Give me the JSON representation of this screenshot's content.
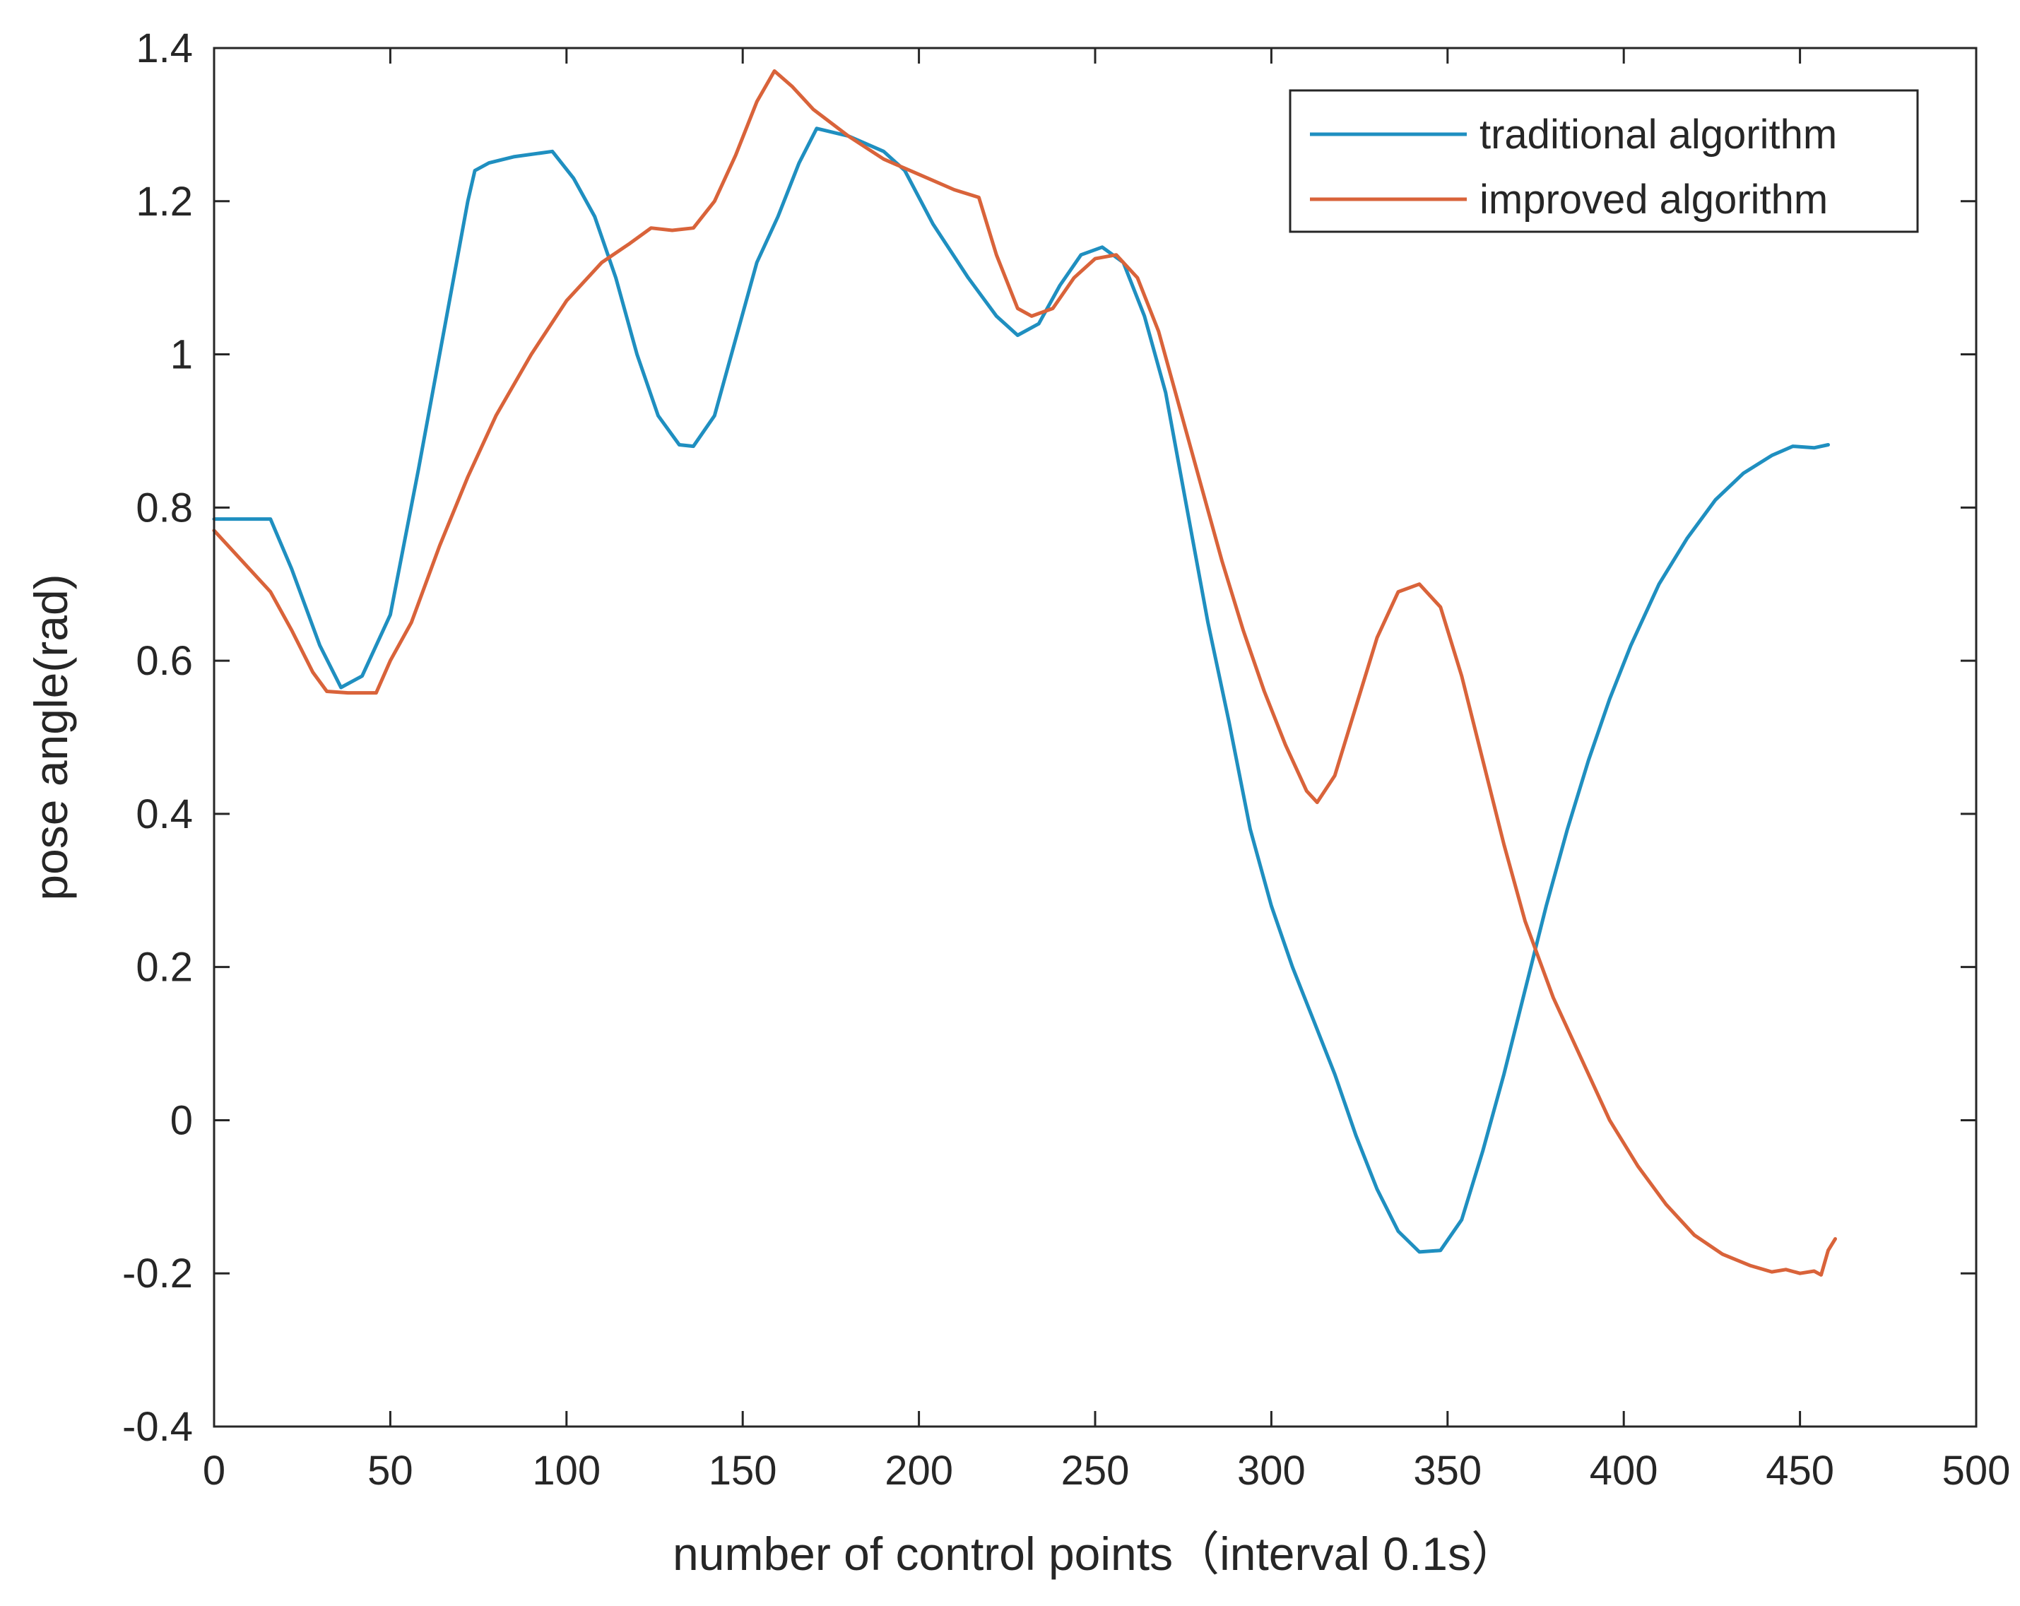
{
  "chart_data": {
    "type": "line",
    "xlabel": "number of control points（interval 0.1s）",
    "ylabel": "pose angle(rad)",
    "xlim": [
      0,
      500
    ],
    "ylim": [
      -0.4,
      1.4
    ],
    "xticks": [
      0,
      50,
      100,
      150,
      200,
      250,
      300,
      350,
      400,
      450,
      500
    ],
    "yticks": [
      -0.4,
      -0.2,
      0,
      0.2,
      0.4,
      0.6,
      0.8,
      1,
      1.2,
      1.4
    ],
    "xtick_labels": [
      "0",
      "50",
      "100",
      "150",
      "200",
      "250",
      "300",
      "350",
      "400",
      "450",
      "500"
    ],
    "ytick_labels": [
      "-0.4",
      "-0.2",
      "0",
      "0.2",
      "0.4",
      "0.6",
      "0.8",
      "1",
      "1.2",
      "1.4"
    ],
    "grid": false,
    "legend_position": "top-right",
    "series": [
      {
        "name": "traditional algorithm",
        "color": "#1f8fc0",
        "points": [
          [
            0,
            0.785
          ],
          [
            16,
            0.785
          ],
          [
            22,
            0.72
          ],
          [
            30,
            0.62
          ],
          [
            36,
            0.565
          ],
          [
            42,
            0.58
          ],
          [
            50,
            0.66
          ],
          [
            58,
            0.85
          ],
          [
            66,
            1.05
          ],
          [
            72,
            1.2
          ],
          [
            74,
            1.24
          ],
          [
            78,
            1.25
          ],
          [
            85,
            1.258
          ],
          [
            96,
            1.265
          ],
          [
            102,
            1.23
          ],
          [
            108,
            1.18
          ],
          [
            114,
            1.1
          ],
          [
            120,
            1.0
          ],
          [
            126,
            0.92
          ],
          [
            132,
            0.882
          ],
          [
            136,
            0.88
          ],
          [
            142,
            0.92
          ],
          [
            148,
            1.02
          ],
          [
            154,
            1.12
          ],
          [
            160,
            1.18
          ],
          [
            166,
            1.25
          ],
          [
            171,
            1.295
          ],
          [
            180,
            1.285
          ],
          [
            190,
            1.265
          ],
          [
            196,
            1.24
          ],
          [
            204,
            1.17
          ],
          [
            214,
            1.1
          ],
          [
            222,
            1.05
          ],
          [
            228,
            1.025
          ],
          [
            234,
            1.04
          ],
          [
            240,
            1.09
          ],
          [
            246,
            1.13
          ],
          [
            252,
            1.14
          ],
          [
            258,
            1.12
          ],
          [
            264,
            1.05
          ],
          [
            270,
            0.95
          ],
          [
            276,
            0.8
          ],
          [
            282,
            0.65
          ],
          [
            288,
            0.52
          ],
          [
            294,
            0.38
          ],
          [
            300,
            0.28
          ],
          [
            306,
            0.2
          ],
          [
            312,
            0.13
          ],
          [
            318,
            0.06
          ],
          [
            324,
            -0.02
          ],
          [
            330,
            -0.09
          ],
          [
            336,
            -0.145
          ],
          [
            342,
            -0.172
          ],
          [
            348,
            -0.17
          ],
          [
            354,
            -0.13
          ],
          [
            360,
            -0.04
          ],
          [
            366,
            0.06
          ],
          [
            372,
            0.17
          ],
          [
            378,
            0.28
          ],
          [
            384,
            0.38
          ],
          [
            390,
            0.47
          ],
          [
            396,
            0.55
          ],
          [
            402,
            0.62
          ],
          [
            410,
            0.7
          ],
          [
            418,
            0.76
          ],
          [
            426,
            0.81
          ],
          [
            434,
            0.845
          ],
          [
            442,
            0.868
          ],
          [
            448,
            0.88
          ],
          [
            454,
            0.878
          ],
          [
            458,
            0.882
          ]
        ]
      },
      {
        "name": "improved algorithm",
        "color": "#d9633a",
        "points": [
          [
            0,
            0.77
          ],
          [
            8,
            0.73
          ],
          [
            16,
            0.69
          ],
          [
            22,
            0.64
          ],
          [
            28,
            0.585
          ],
          [
            32,
            0.56
          ],
          [
            38,
            0.558
          ],
          [
            46,
            0.558
          ],
          [
            50,
            0.6
          ],
          [
            56,
            0.65
          ],
          [
            64,
            0.75
          ],
          [
            72,
            0.84
          ],
          [
            80,
            0.92
          ],
          [
            90,
            1.0
          ],
          [
            100,
            1.07
          ],
          [
            110,
            1.12
          ],
          [
            118,
            1.145
          ],
          [
            124,
            1.165
          ],
          [
            130,
            1.162
          ],
          [
            136,
            1.165
          ],
          [
            142,
            1.2
          ],
          [
            148,
            1.26
          ],
          [
            154,
            1.33
          ],
          [
            159,
            1.37
          ],
          [
            164,
            1.35
          ],
          [
            170,
            1.32
          ],
          [
            180,
            1.285
          ],
          [
            190,
            1.255
          ],
          [
            200,
            1.235
          ],
          [
            210,
            1.215
          ],
          [
            217,
            1.205
          ],
          [
            222,
            1.13
          ],
          [
            228,
            1.06
          ],
          [
            232,
            1.05
          ],
          [
            238,
            1.06
          ],
          [
            244,
            1.1
          ],
          [
            250,
            1.125
          ],
          [
            256,
            1.13
          ],
          [
            262,
            1.1
          ],
          [
            268,
            1.03
          ],
          [
            274,
            0.93
          ],
          [
            280,
            0.83
          ],
          [
            286,
            0.73
          ],
          [
            292,
            0.64
          ],
          [
            298,
            0.56
          ],
          [
            304,
            0.49
          ],
          [
            310,
            0.43
          ],
          [
            313,
            0.415
          ],
          [
            318,
            0.45
          ],
          [
            324,
            0.54
          ],
          [
            330,
            0.63
          ],
          [
            336,
            0.69
          ],
          [
            342,
            0.7
          ],
          [
            348,
            0.67
          ],
          [
            354,
            0.58
          ],
          [
            360,
            0.47
          ],
          [
            366,
            0.36
          ],
          [
            372,
            0.26
          ],
          [
            380,
            0.16
          ],
          [
            388,
            0.08
          ],
          [
            396,
            0.0
          ],
          [
            404,
            -0.06
          ],
          [
            412,
            -0.11
          ],
          [
            420,
            -0.15
          ],
          [
            428,
            -0.175
          ],
          [
            436,
            -0.19
          ],
          [
            442,
            -0.198
          ],
          [
            446,
            -0.195
          ],
          [
            450,
            -0.2
          ],
          [
            454,
            -0.197
          ],
          [
            456,
            -0.202
          ],
          [
            458,
            -0.17
          ],
          [
            460,
            -0.155
          ]
        ]
      }
    ]
  }
}
